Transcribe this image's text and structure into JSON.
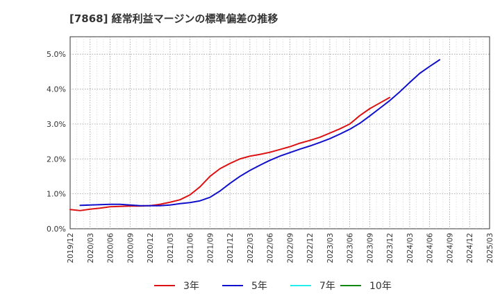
{
  "chart_data": {
    "type": "line",
    "title": "[7868]  経常利益マージンの標準偏差の推移",
    "xlabel": "",
    "ylabel": "",
    "ylim": [
      0,
      5.5
    ],
    "y_ticks": [
      "0.0%",
      "1.0%",
      "2.0%",
      "3.0%",
      "4.0%",
      "5.0%"
    ],
    "y_tick_values": [
      0,
      1,
      2,
      3,
      4,
      5
    ],
    "x_ticks": [
      "2019/12",
      "2020/03",
      "2020/06",
      "2020/09",
      "2020/12",
      "2021/03",
      "2021/06",
      "2021/09",
      "2021/12",
      "2022/03",
      "2022/06",
      "2022/09",
      "2022/12",
      "2023/03",
      "2023/06",
      "2023/09",
      "2023/12",
      "2024/03",
      "2024/06",
      "2024/09",
      "2024/12",
      "2025/03"
    ],
    "grid": true,
    "legend_position": "bottom",
    "series": [
      {
        "name": "3年",
        "color": "#dd1111",
        "values": [
          0.55,
          0.52,
          0.56,
          0.59,
          0.63,
          0.64,
          0.65,
          0.65,
          0.66,
          0.7,
          0.76,
          0.83,
          0.97,
          1.2,
          1.5,
          1.72,
          1.87,
          2.0,
          2.08,
          2.13,
          2.19,
          2.27,
          2.35,
          2.45,
          2.53,
          2.62,
          2.74,
          2.86,
          3.0,
          3.24,
          3.44,
          3.6,
          3.76
        ]
      },
      {
        "name": "5年",
        "color": "#1010cc",
        "values": [
          null,
          0.67,
          0.68,
          0.69,
          0.7,
          0.7,
          0.68,
          0.66,
          0.66,
          0.66,
          0.68,
          0.72,
          0.75,
          0.8,
          0.9,
          1.08,
          1.3,
          1.5,
          1.67,
          1.82,
          1.96,
          2.08,
          2.18,
          2.28,
          2.37,
          2.47,
          2.58,
          2.71,
          2.85,
          3.02,
          3.23,
          3.45,
          3.67,
          3.92,
          4.19,
          4.45,
          4.65,
          4.84
        ]
      },
      {
        "name": "7年",
        "color": "#22eeee",
        "values": [
          null,
          null,
          null,
          null,
          null,
          null,
          null,
          null,
          null,
          null,
          null,
          null,
          null,
          null,
          null,
          null,
          null,
          null,
          null,
          null,
          null,
          null,
          null,
          null,
          null,
          null,
          null,
          null,
          null,
          null,
          null,
          null,
          null,
          null,
          null,
          null,
          null,
          null
        ]
      },
      {
        "name": "10年",
        "color": "#118811",
        "values": []
      }
    ]
  }
}
